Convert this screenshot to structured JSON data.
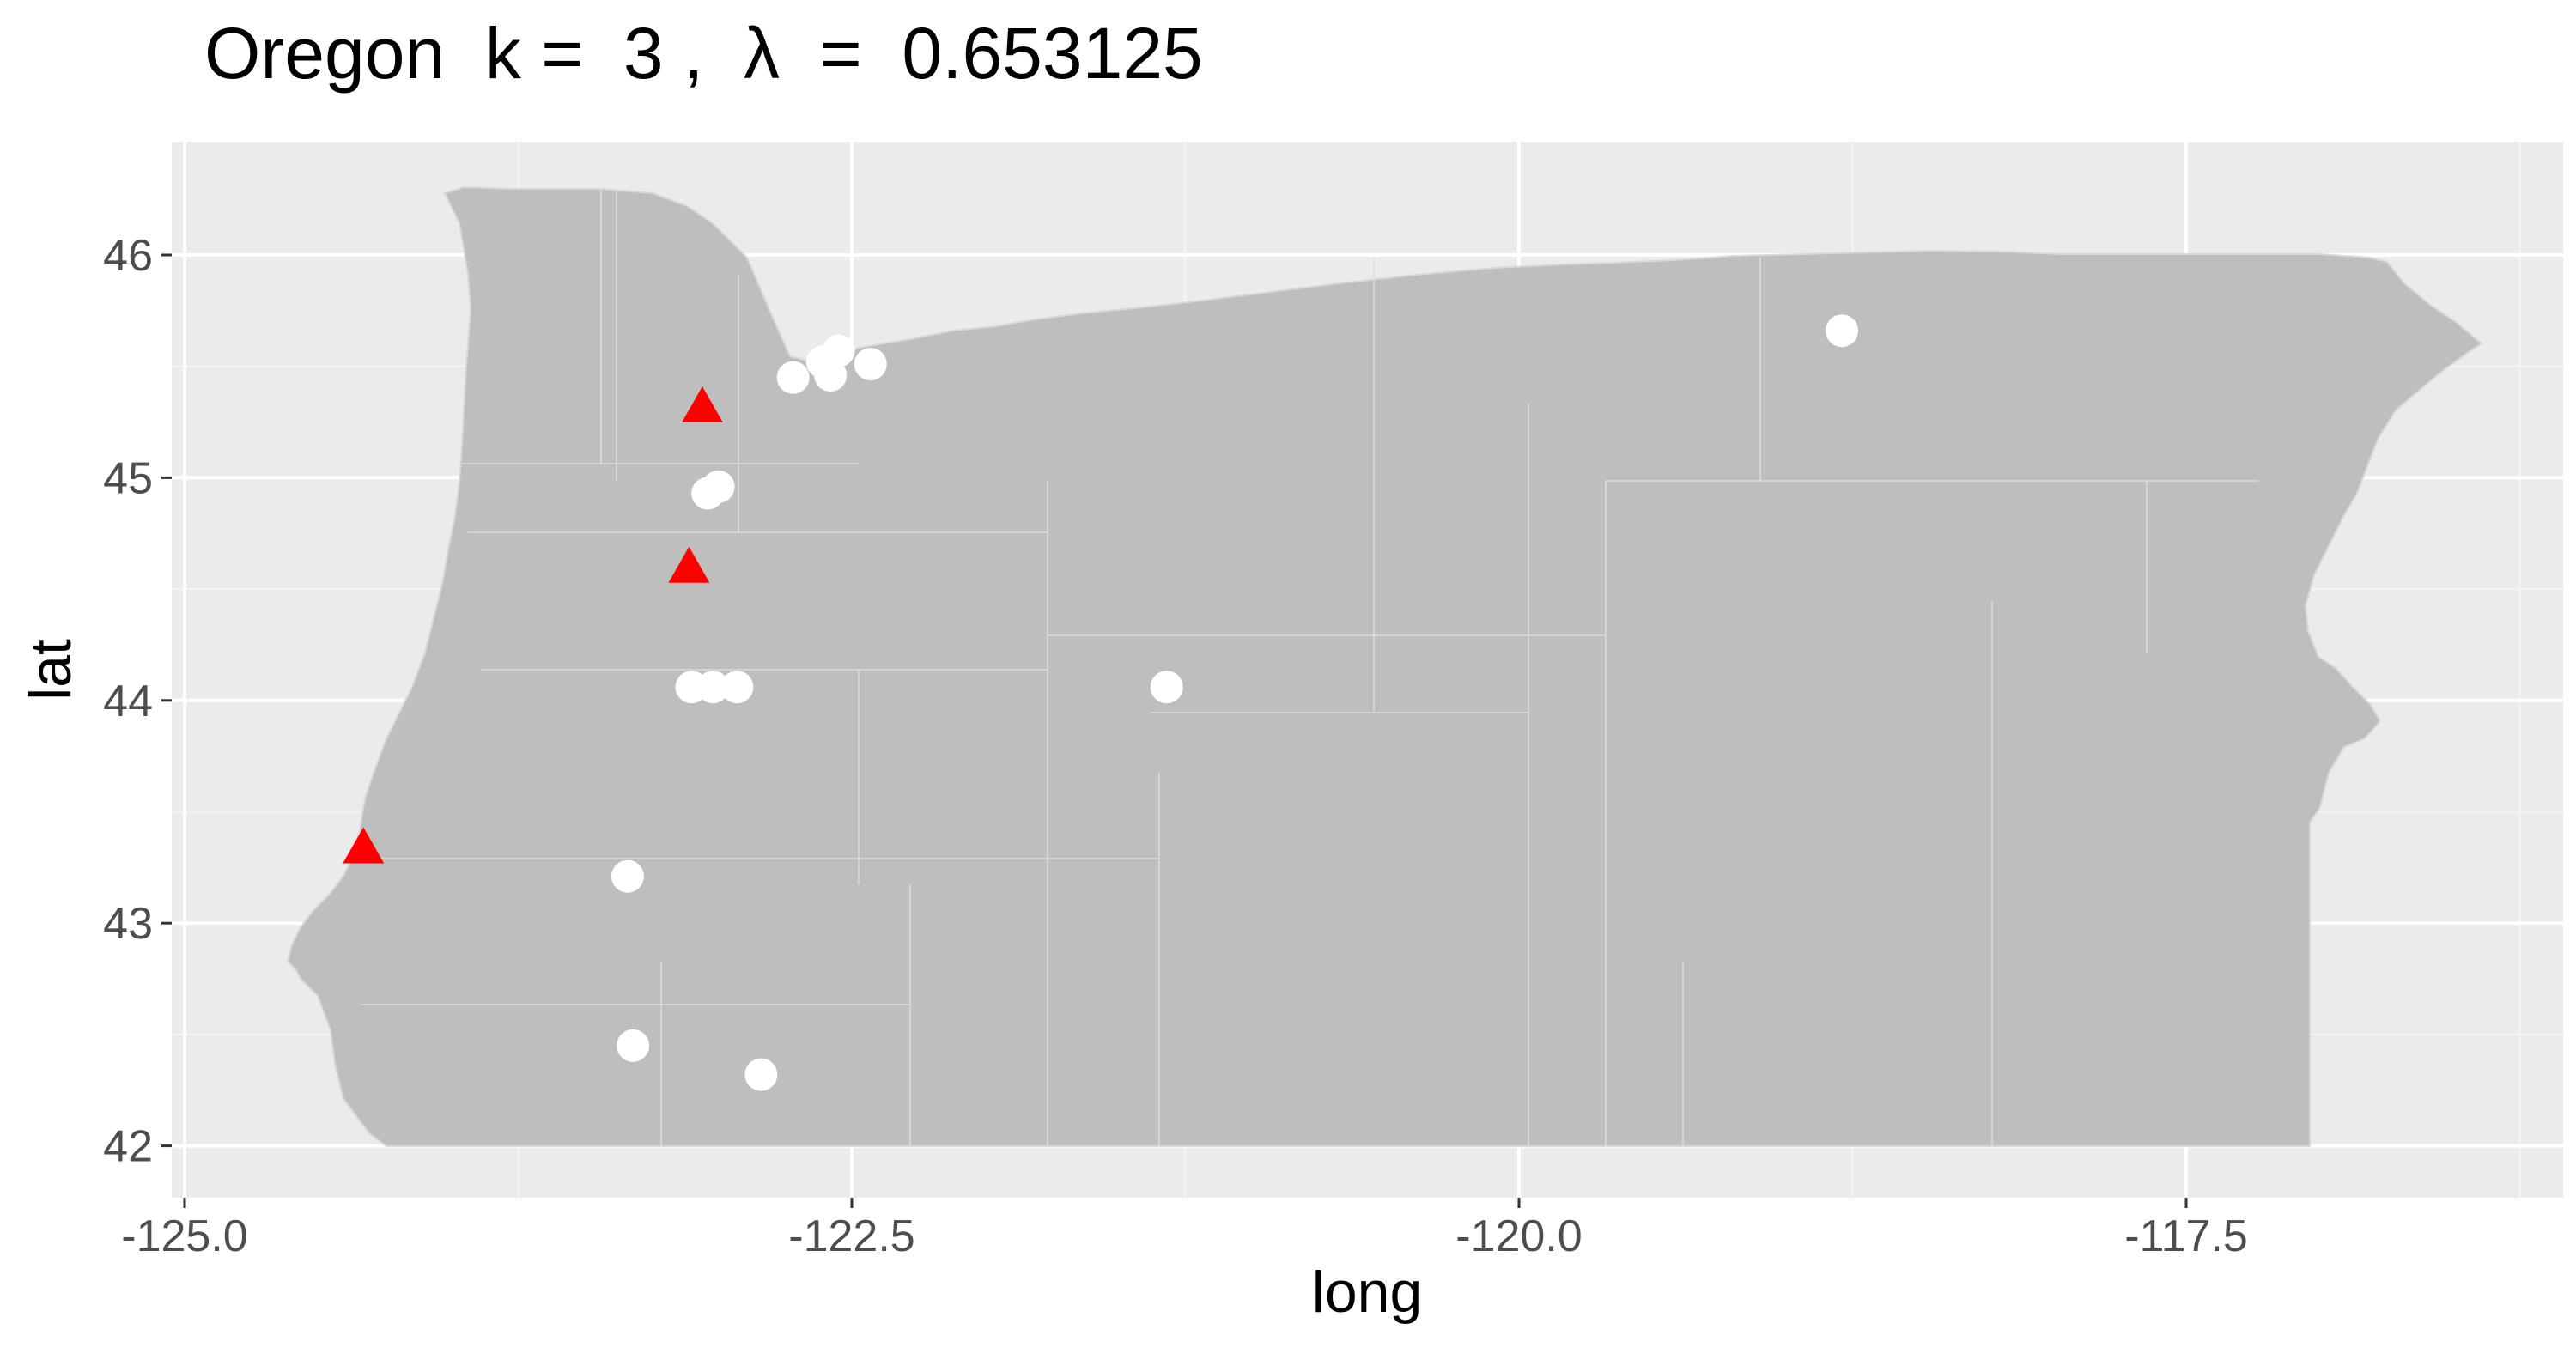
{
  "title": "Oregon  k =  3 ,  λ  =  0.653125",
  "chart_data": {
    "type": "scatter",
    "xlabel": "long",
    "ylabel": "lat",
    "xlim": [
      -125.0,
      -116.3
    ],
    "ylim": [
      41.9,
      46.5
    ],
    "x_ticks": [
      -125.0,
      -122.5,
      -120.0,
      -117.5
    ],
    "x_tick_labels": [
      "-125.0",
      "-122.5",
      "-120.0",
      "-117.5"
    ],
    "y_ticks": [
      42,
      43,
      44,
      45,
      46
    ],
    "y_tick_labels": [
      "42",
      "43",
      "44",
      "45",
      "46"
    ],
    "grid": true,
    "background": "#ebebeb",
    "map_fill": "#bebebe",
    "series": [
      {
        "marker": "circle",
        "color": "#ffffff",
        "points": [
          {
            "x": -122.72,
            "y": 45.45
          },
          {
            "x": -122.61,
            "y": 45.52
          },
          {
            "x": -122.55,
            "y": 45.57
          },
          {
            "x": -122.58,
            "y": 45.46
          },
          {
            "x": -122.43,
            "y": 45.51
          },
          {
            "x": -118.79,
            "y": 45.66
          },
          {
            "x": -123.04,
            "y": 44.93
          },
          {
            "x": -123.0,
            "y": 44.96
          },
          {
            "x": -123.1,
            "y": 44.06
          },
          {
            "x": -123.02,
            "y": 44.06
          },
          {
            "x": -122.93,
            "y": 44.06
          },
          {
            "x": -121.32,
            "y": 44.06
          },
          {
            "x": -123.34,
            "y": 43.21
          },
          {
            "x": -123.32,
            "y": 42.45
          },
          {
            "x": -122.84,
            "y": 42.32
          }
        ]
      },
      {
        "marker": "triangle",
        "color": "#ff0000",
        "points": [
          {
            "x": -123.06,
            "y": 45.31
          },
          {
            "x": -123.11,
            "y": 44.59
          },
          {
            "x": -124.33,
            "y": 43.33
          }
        ]
      }
    ]
  }
}
